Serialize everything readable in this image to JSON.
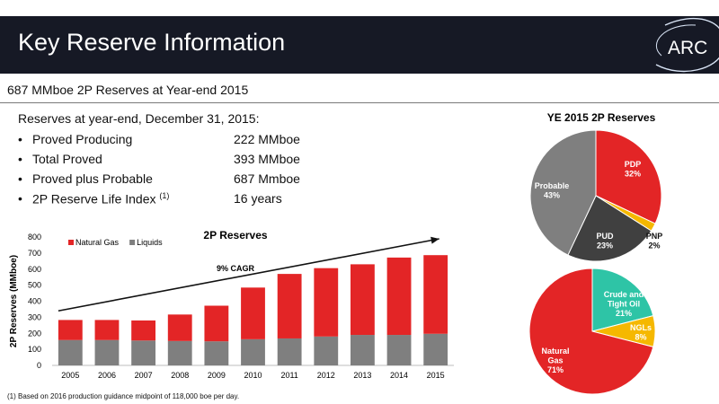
{
  "header": {
    "title": "Key Reserve Information",
    "logo_text": "ARC"
  },
  "subtitle": "687 MMboe 2P Reserves at Year-end 2015",
  "reserves_heading": "Reserves at year-end, December 31, 2015:",
  "bullets": [
    {
      "label": "Proved Producing",
      "value": "222 MMboe"
    },
    {
      "label": "Total Proved",
      "value": "393 MMboe"
    },
    {
      "label": "Proved plus Probable",
      "value": "687 Mmboe"
    },
    {
      "label": "2P Reserve Life Index",
      "sup": "(1)",
      "value": "16 years"
    }
  ],
  "bullet_char": "•",
  "footnote": "(1) Based on 2016 production guidance midpoint of 118,000 boe per day.",
  "colors": {
    "header_bg": "#161925",
    "red": "#e32526",
    "gray": "#7f7f7f",
    "dark": "#404040",
    "yellow": "#f5b800",
    "teal": "#2ec4a6"
  },
  "chart_data": [
    {
      "type": "bar",
      "title": "2P Reserves",
      "ylabel": "2P Reserves (MMboe)",
      "xlabel": "",
      "categories": [
        "2005",
        "2006",
        "2007",
        "2008",
        "2009",
        "2010",
        "2011",
        "2012",
        "2013",
        "2014",
        "2015"
      ],
      "series": [
        {
          "name": "Liquids",
          "color": "#7f7f7f",
          "values": [
            158,
            158,
            155,
            152,
            150,
            163,
            168,
            180,
            190,
            190,
            197
          ]
        },
        {
          "name": "Natural Gas",
          "color": "#e32526",
          "values": [
            125,
            125,
            125,
            165,
            222,
            322,
            402,
            426,
            440,
            482,
            490
          ]
        }
      ],
      "stacked": true,
      "ylim": [
        0,
        800
      ],
      "yticks": [
        0,
        100,
        200,
        300,
        400,
        500,
        600,
        700,
        800
      ],
      "legend": "top-left",
      "grid": false,
      "annotation": {
        "text": "9% CAGR",
        "arrow_from": [
          "2005",
          340
        ],
        "arrow_to": [
          "2015",
          800
        ]
      }
    },
    {
      "type": "pie",
      "title": "YE 2015 2P Reserves",
      "slices": [
        {
          "name": "PDP",
          "pct": "32%",
          "value": 32,
          "color": "#e32526"
        },
        {
          "name": "PNP",
          "pct": "2%",
          "value": 2,
          "color": "#f5b800"
        },
        {
          "name": "PUD",
          "pct": "23%",
          "value": 23,
          "color": "#404040"
        },
        {
          "name": "Probable",
          "pct": "43%",
          "value": 43,
          "color": "#7f7f7f"
        }
      ]
    },
    {
      "type": "pie",
      "title": "",
      "slices": [
        {
          "name": "Crude and Tight Oil",
          "name_lines": [
            "Crude and",
            "Tight Oil"
          ],
          "pct": "21%",
          "value": 21,
          "color": "#2ec4a6"
        },
        {
          "name": "NGLs",
          "name_lines": [
            "NGLs"
          ],
          "pct": "8%",
          "value": 8,
          "color": "#f5b800"
        },
        {
          "name": "Natural Gas",
          "name_lines": [
            "Natural",
            "Gas"
          ],
          "pct": "71%",
          "value": 71,
          "color": "#e32526"
        }
      ]
    }
  ]
}
